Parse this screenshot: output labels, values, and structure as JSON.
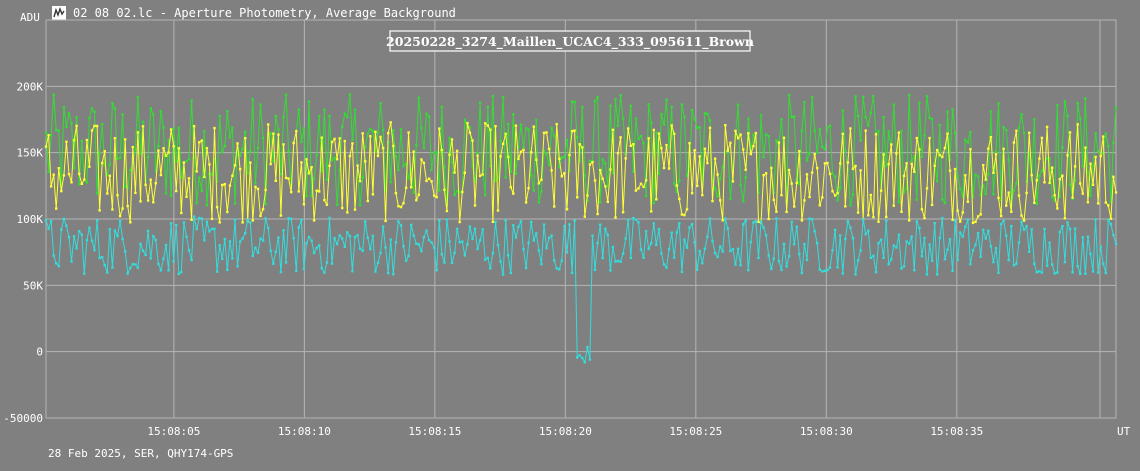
{
  "window": {
    "title": "02_08_02.lc - Aperture Photometry, Average Background",
    "icon": "lightcurve-app-icon"
  },
  "footer_text": "28 Feb 2025, SER, QHY174-GPS",
  "colors": {
    "background": "#808080",
    "grid": "#b4b4b4",
    "target": "#33dddd",
    "comp1": "#ffff33",
    "comp2": "#33dd33",
    "label_box": "#ffffff"
  },
  "chart_data": {
    "type": "line",
    "title": "20250228_3274_Maillen_UCAC4_333_095611_Brown",
    "ylabel": "ADU",
    "xlabel": "UT",
    "ylim": [
      -50000,
      250000
    ],
    "yticks": [
      {
        "value": 200000,
        "label": "200K"
      },
      {
        "value": 150000,
        "label": "150K"
      },
      {
        "value": 100000,
        "label": "100K"
      },
      {
        "value": 50000,
        "label": "50K"
      },
      {
        "value": 0,
        "label": "0"
      },
      {
        "value": -50000,
        "label": "-50000"
      }
    ],
    "x_range_seconds": [
      0.1,
      41.1
    ],
    "xticks": [
      {
        "value": 5,
        "label": "15:08:05"
      },
      {
        "value": 10,
        "label": "15:08:10"
      },
      {
        "value": 15,
        "label": "15:08:15"
      },
      {
        "value": 20,
        "label": "15:08:20"
      },
      {
        "value": 25,
        "label": "15:08:25"
      },
      {
        "value": 30,
        "label": "15:08:30"
      },
      {
        "value": 35,
        "label": "15:08:35"
      }
    ],
    "event_window": [
      20.4,
      21.0
    ],
    "series": [
      {
        "role": "target",
        "mean": 80000,
        "spread": 22000,
        "event_level": -3000
      },
      {
        "role": "comp1",
        "mean": 135000,
        "spread": 38000
      },
      {
        "role": "comp2",
        "mean": 152000,
        "spread": 42000
      }
    ]
  }
}
